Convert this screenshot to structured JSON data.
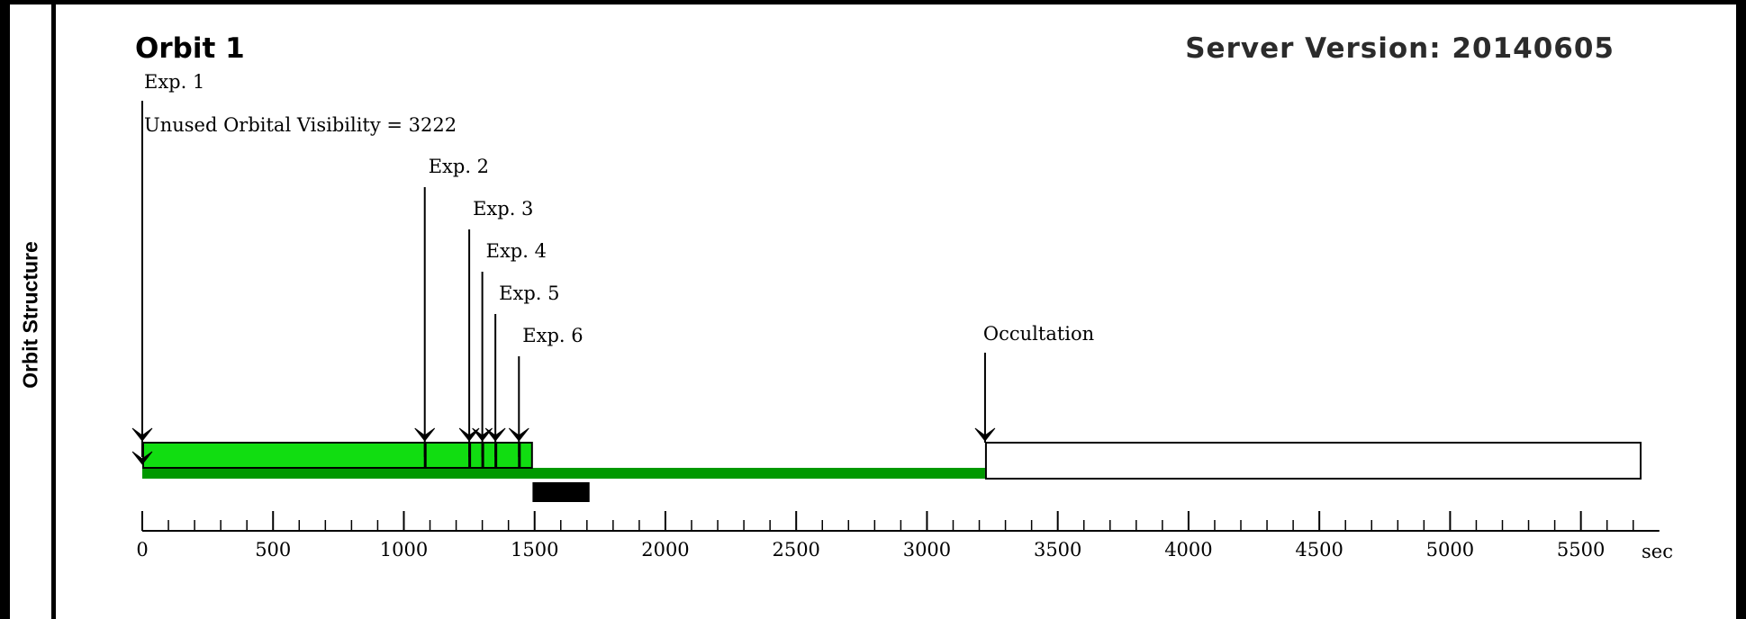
{
  "side_label": "Orbit Structure",
  "title": "Orbit 1",
  "server_version": "Server Version: 20140605",
  "chart_data": {
    "type": "timeline",
    "unit": "sec",
    "xlim": [
      0,
      5800
    ],
    "ticks": [
      0,
      500,
      1000,
      1500,
      2000,
      2500,
      3000,
      3500,
      4000,
      4500,
      5000,
      5500
    ],
    "minor_step": 100,
    "unused_visibility_text": "Unused Orbital Visibility = 3222",
    "visibility_end": 3222,
    "exposures": [
      {
        "label": "Exp. 1",
        "start": 0,
        "end": 1080
      },
      {
        "label": "Exp. 2",
        "start": 1080,
        "end": 1250
      },
      {
        "label": "Exp. 3",
        "start": 1250,
        "end": 1300
      },
      {
        "label": "Exp. 4",
        "start": 1300,
        "end": 1350
      },
      {
        "label": "Exp. 5",
        "start": 1350,
        "end": 1440
      },
      {
        "label": "Exp. 6",
        "start": 1440,
        "end": 1490
      }
    ],
    "occultation": {
      "label": "Occultation",
      "start": 3222,
      "end": 5725
    },
    "black_bar": {
      "start": 1492,
      "end": 1710
    },
    "colors": {
      "exposure_fill": "#11dd11",
      "visibility_line": "#009900",
      "black_bar": "#000000",
      "occultation_fill": "#ffffff"
    }
  }
}
